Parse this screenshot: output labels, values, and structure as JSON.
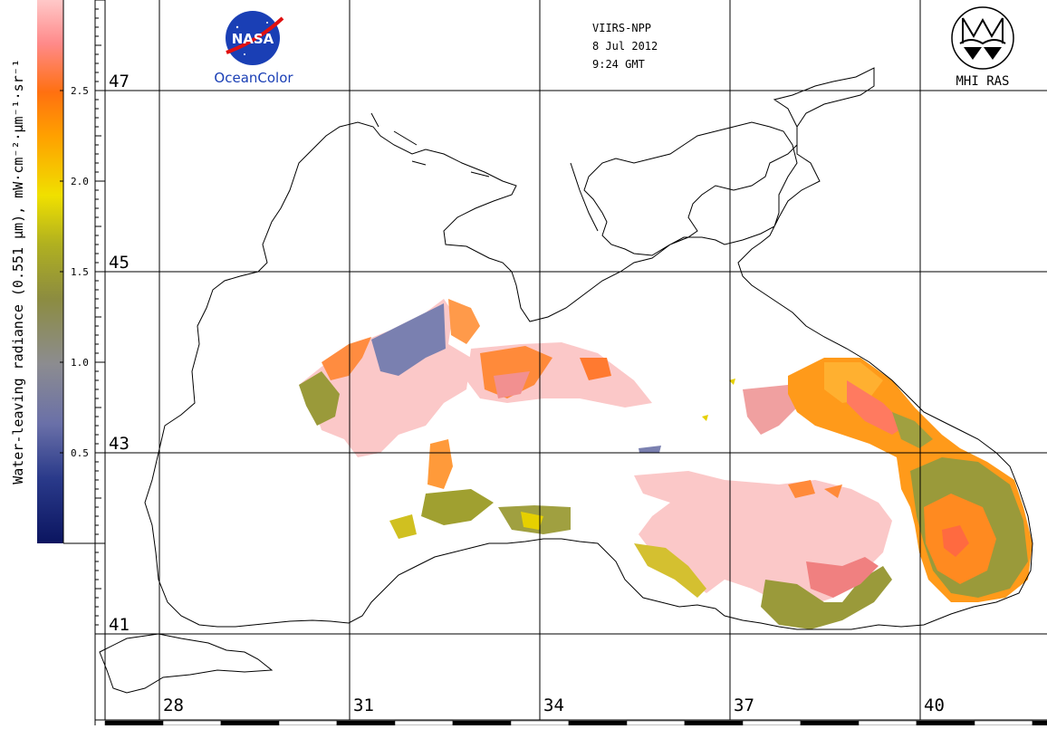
{
  "colorbar": {
    "title": "Water-leaving radiance (0.551 μm), mW·cm⁻²·μm⁻¹·sr⁻¹",
    "ticks": [
      "2.5",
      "2.0",
      "1.5",
      "1.0",
      "0.5"
    ],
    "tick_values": [
      2.5,
      2.0,
      1.5,
      1.0,
      0.5
    ],
    "range": [
      0,
      3.0
    ],
    "colors": [
      "#0b1560",
      "#4a5aa8",
      "#9090b8",
      "#8c8c60",
      "#a0a030",
      "#e8e000",
      "#ffa000",
      "#ff7000",
      "#ff9090",
      "#ffd0d0"
    ]
  },
  "header": {
    "sensor": "VIIRS-NPP",
    "date": "8 Jul 2012",
    "time": "9:24 GMT"
  },
  "logos": {
    "nasa_text": "NASA",
    "oceancolor": "OceanColor",
    "mhi": "MHI RAS"
  },
  "grid": {
    "latitudes": [
      "47",
      "45",
      "43",
      "41"
    ],
    "longitudes": [
      "28",
      "31",
      "34",
      "37",
      "40"
    ]
  },
  "colors": {
    "coast": "#000000",
    "grid": "#000000",
    "pink": "#f7a3a3",
    "light_pink": "#fbd0d0",
    "orange": "#ff8c1a",
    "yellow": "#e6d000",
    "olive": "#9a9a3a",
    "blue_gray": "#7a80b0"
  }
}
